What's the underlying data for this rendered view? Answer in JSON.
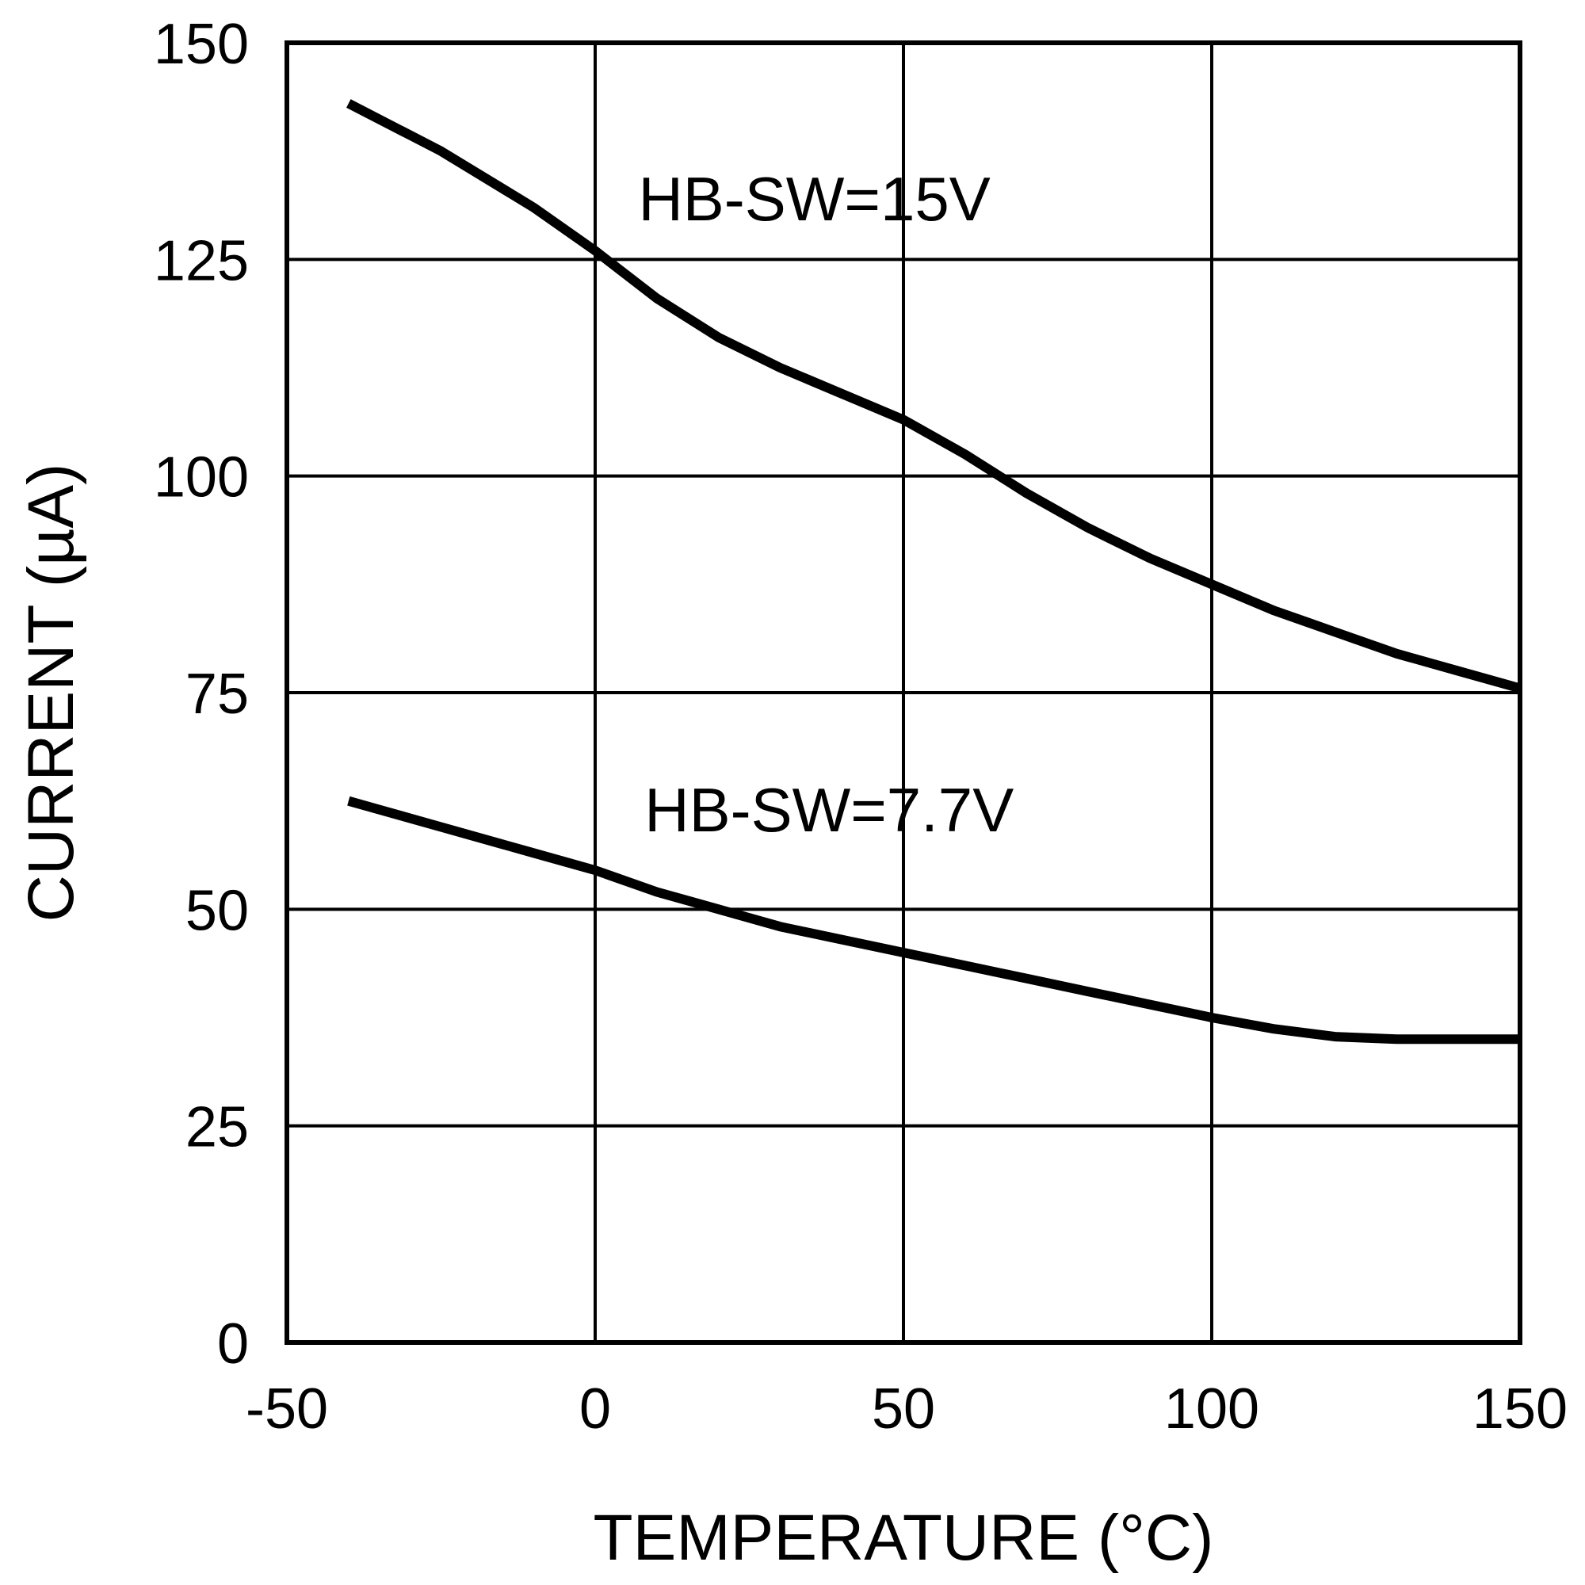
{
  "chart_data": {
    "type": "line",
    "title": "",
    "xlabel": "TEMPERATURE (°C)",
    "ylabel": "CURRENT (µA)",
    "xlim": [
      -50,
      150
    ],
    "ylim": [
      0,
      150
    ],
    "x_ticks": [
      -50,
      0,
      50,
      100,
      150
    ],
    "y_ticks": [
      0,
      25,
      50,
      75,
      100,
      125,
      150
    ],
    "grid": true,
    "legend": "none",
    "series": [
      {
        "name": "HB-SW=15V",
        "x": [
          -40,
          -25,
          -10,
          0,
          10,
          20,
          30,
          40,
          50,
          60,
          70,
          80,
          90,
          100,
          110,
          120,
          130,
          140,
          150
        ],
        "y": [
          143,
          137.5,
          131,
          126,
          120.5,
          116,
          112.5,
          109.5,
          106.5,
          102.5,
          98,
          94,
          90.5,
          87.5,
          84.5,
          82,
          79.5,
          77.5,
          75.5
        ]
      },
      {
        "name": "HB-SW=7.7V",
        "x": [
          -40,
          -25,
          -10,
          0,
          10,
          20,
          30,
          40,
          50,
          60,
          70,
          80,
          90,
          100,
          110,
          120,
          130,
          140,
          150
        ],
        "y": [
          62.5,
          59.5,
          56.5,
          54.5,
          52,
          50,
          48,
          46.5,
          45,
          43.5,
          42,
          40.5,
          39,
          37.5,
          36.2,
          35.3,
          35,
          35,
          35
        ]
      }
    ],
    "colors": {
      "line": "#000000",
      "grid": "#000000",
      "background": "#ffffff"
    }
  }
}
